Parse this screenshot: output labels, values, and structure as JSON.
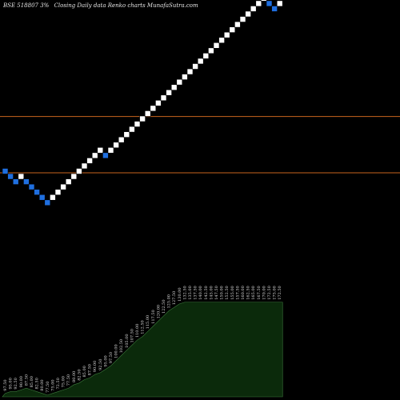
{
  "chart_data": {
    "type": "renko",
    "title": "BSE 518807 3%",
    "subtitle": "Closing Daily data  Renko  charts MunafaSutra.com",
    "bricks": [
      {
        "dir": "down",
        "idx": 0
      },
      {
        "dir": "down",
        "idx": -1
      },
      {
        "dir": "down",
        "idx": -2
      },
      {
        "dir": "up",
        "idx": -1
      },
      {
        "dir": "down",
        "idx": -2
      },
      {
        "dir": "down",
        "idx": -3
      },
      {
        "dir": "down",
        "idx": -4
      },
      {
        "dir": "down",
        "idx": -5
      },
      {
        "dir": "down",
        "idx": -6
      },
      {
        "dir": "up",
        "idx": -5
      },
      {
        "dir": "up",
        "idx": -4
      },
      {
        "dir": "up",
        "idx": -3
      },
      {
        "dir": "up",
        "idx": -2
      },
      {
        "dir": "up",
        "idx": -1
      },
      {
        "dir": "up",
        "idx": 0
      },
      {
        "dir": "up",
        "idx": 1
      },
      {
        "dir": "up",
        "idx": 2
      },
      {
        "dir": "up",
        "idx": 3
      },
      {
        "dir": "up",
        "idx": 4
      },
      {
        "dir": "down",
        "idx": 3
      },
      {
        "dir": "up",
        "idx": 4
      },
      {
        "dir": "up",
        "idx": 5
      },
      {
        "dir": "up",
        "idx": 6
      },
      {
        "dir": "up",
        "idx": 7
      },
      {
        "dir": "up",
        "idx": 8
      },
      {
        "dir": "up",
        "idx": 9
      },
      {
        "dir": "up",
        "idx": 10
      },
      {
        "dir": "up",
        "idx": 11
      },
      {
        "dir": "up",
        "idx": 12
      },
      {
        "dir": "up",
        "idx": 13
      },
      {
        "dir": "up",
        "idx": 14
      },
      {
        "dir": "up",
        "idx": 15
      },
      {
        "dir": "up",
        "idx": 16
      },
      {
        "dir": "up",
        "idx": 17
      },
      {
        "dir": "up",
        "idx": 18
      },
      {
        "dir": "up",
        "idx": 19
      },
      {
        "dir": "up",
        "idx": 20
      },
      {
        "dir": "up",
        "idx": 21
      },
      {
        "dir": "up",
        "idx": 22
      },
      {
        "dir": "up",
        "idx": 23
      },
      {
        "dir": "up",
        "idx": 24
      },
      {
        "dir": "up",
        "idx": 25
      },
      {
        "dir": "up",
        "idx": 26
      },
      {
        "dir": "up",
        "idx": 27
      },
      {
        "dir": "up",
        "idx": 28
      },
      {
        "dir": "up",
        "idx": 29
      },
      {
        "dir": "up",
        "idx": 30
      },
      {
        "dir": "up",
        "idx": 31
      },
      {
        "dir": "up",
        "idx": 32
      },
      {
        "dir": "up",
        "idx": 33
      },
      {
        "dir": "down",
        "idx": 32
      },
      {
        "dir": "down",
        "idx": 31
      },
      {
        "dir": "up",
        "idx": 32
      }
    ],
    "price_labels": [
      "97.50",
      "95.00",
      "92.50",
      "90.00",
      "87.50",
      "85.00",
      "82.50",
      "80.00",
      "77.50",
      "75.00",
      "72.50",
      "75.00",
      "77.50",
      "80.00",
      "82.50",
      "85.00",
      "87.50",
      "90.00",
      "92.50",
      "95.00",
      "97.50",
      "100.00",
      "102.50",
      "105.00",
      "107.50",
      "110.00",
      "112.50",
      "115.00",
      "117.50",
      "120.00",
      "122.50",
      "125.00",
      "127.50",
      "130.00",
      "132.50",
      "135.00",
      "137.50",
      "140.00",
      "142.50",
      "145.00",
      "147.50",
      "150.00",
      "152.50",
      "155.00",
      "157.50",
      "160.00",
      "162.50",
      "165.00",
      "167.50",
      "170.00",
      "172.50",
      "175.00",
      "172.50"
    ],
    "horizontal_lines": [
      {
        "idx": 8,
        "color": "#c8641e"
      },
      {
        "idx": 0,
        "color": "#c8641e"
      }
    ],
    "colors": {
      "up": "#ffffff",
      "down": "#1f6fe0",
      "background": "#000000",
      "volume_fill": "#0b2a0b",
      "volume_line": "#3c7a3c",
      "reference_line": "#c8641e"
    },
    "volume_profile": [
      2,
      3,
      3,
      4,
      5,
      4,
      3,
      2,
      1,
      2,
      3,
      4,
      5,
      7,
      8,
      10,
      11,
      13,
      14,
      16,
      18,
      21,
      24,
      27,
      30,
      33,
      35,
      38,
      41,
      44,
      47,
      50,
      52,
      54,
      55,
      55,
      55,
      55,
      55,
      55,
      55,
      55,
      55,
      55,
      55,
      55,
      55,
      55,
      55,
      55,
      55,
      55,
      55
    ]
  }
}
